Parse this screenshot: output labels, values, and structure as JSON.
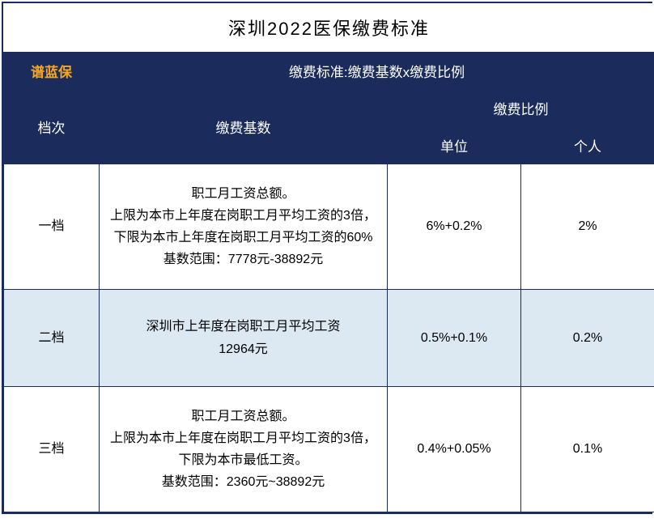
{
  "title": "深圳2022医保缴费标准",
  "brand": "谱蓝保",
  "formula": "缴费标准:缴费基数x缴费比例",
  "headers": {
    "tier": "档次",
    "base": "缴费基数",
    "ratio": "缴费比例",
    "unit": "单位",
    "person": "个人"
  },
  "rows": [
    {
      "tier": "一档",
      "base": "职工月工资总额。\n上限为本市上年度在岗职工月平均工资的3倍，下限为本市上年度在岗职工月平均工资的60%\n基数范围：7778元-38892元",
      "unit": "6%+0.2%",
      "person": "2%",
      "highlight": false
    },
    {
      "tier": "二档",
      "base": "深圳市上年度在岗职工月平均工资\n12964元",
      "unit": "0.5%+0.1%",
      "person": "0.2%",
      "highlight": true
    },
    {
      "tier": "三档",
      "base": "职工月工资总额。\n上限为本市上年度在岗职工月平均工资的3倍，下限为本市最低工资。\n基数范围：2360元~38892元",
      "unit": "0.4%+0.05%",
      "person": "0.1%",
      "highlight": false
    }
  ],
  "colors": {
    "header_bg": "#1a2b5c",
    "brand_color": "#f5a623",
    "highlight_bg": "#dce8f2",
    "border": "#1a2b5c",
    "text": "#000000"
  }
}
